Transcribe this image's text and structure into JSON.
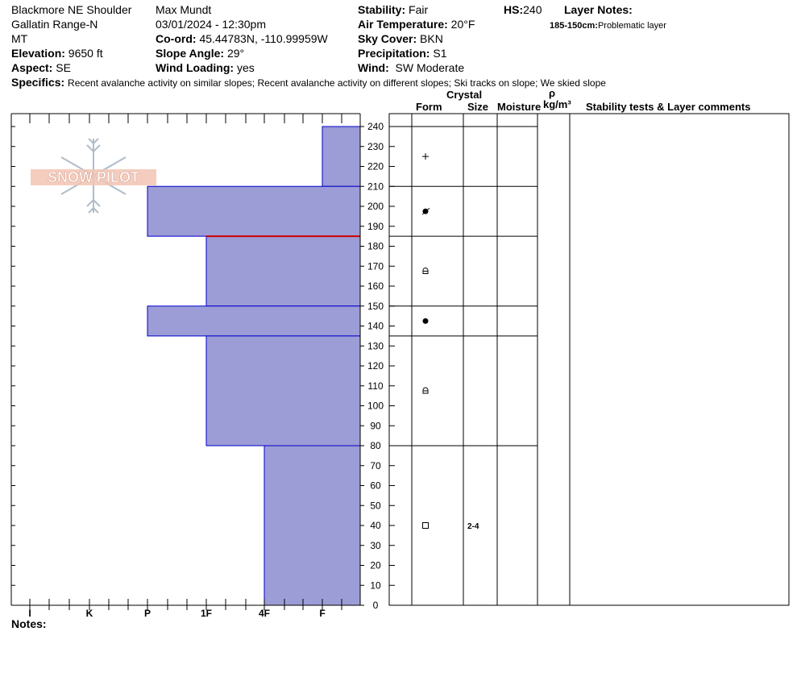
{
  "header": {
    "location": "Blackmore NE Shoulder",
    "range": "Gallatin Range-N",
    "state": "MT",
    "elevation_label": "Elevation:",
    "elevation_value": "9650 ft",
    "aspect_label": "Aspect:",
    "aspect_value": "SE",
    "observer": "Max Mundt",
    "datetime": "03/01/2024 - 12:30pm",
    "coord_label": "Co-ord:",
    "coord_value": "45.44783N, -110.99959W",
    "slope_label": "Slope Angle:",
    "slope_value": "29°",
    "wind_loading_label": "Wind Loading:",
    "wind_loading_value": "yes",
    "stability_label": "Stability:",
    "stability_value": "Fair",
    "air_temp_label": "Air Temperature:",
    "air_temp_value": "20°F",
    "sky_label": "Sky Cover:",
    "sky_value": "BKN",
    "precip_label": "Precipitation:",
    "precip_value": "S1",
    "wind_label": "Wind:",
    "wind_value": "SW Moderate",
    "hs_label": "HS:",
    "hs_value": "240",
    "layer_notes_label": "Layer Notes:",
    "layer_note_range": "185-150cm:",
    "layer_note_text": "Problematic layer",
    "specifics_label": "Specifics:",
    "specifics_value": "Recent avalanche activity on similar slopes; Recent avalanche activity on different slopes; Ski tracks on slope; We skied slope"
  },
  "columns": {
    "crystal": "Crystal",
    "form": "Form",
    "size": "Size",
    "moisture": "Moisture",
    "rho": "ρ",
    "density_unit": "kg/m³",
    "stability_tests": "Stability tests & Layer comments"
  },
  "notes_label": "Notes:",
  "logo_text": "SNOW PILOT",
  "colors": {
    "layer_fill": "#9c9cd6",
    "layer_border": "#0000cc",
    "problem_line": "#cc0000"
  },
  "chart_data": {
    "type": "bar",
    "orientation": "horizontal",
    "hardness_categories": [
      "I",
      "K",
      "P",
      "1F",
      "4F",
      "F"
    ],
    "x_axis_note": "hand hardness decreases to the right (F at right, I at left)",
    "depth_axis": {
      "min": 0,
      "max": 240,
      "ticks": [
        0,
        10,
        20,
        30,
        40,
        50,
        60,
        70,
        80,
        90,
        100,
        110,
        120,
        130,
        140,
        150,
        160,
        170,
        180,
        190,
        200,
        210,
        220,
        230,
        240
      ],
      "unit": "cm"
    },
    "layers": [
      {
        "bottom": 210,
        "top": 240,
        "hardness": "F",
        "form": "+",
        "size": ""
      },
      {
        "bottom": 185,
        "top": 210,
        "hardness": "P",
        "form": "graupel",
        "size": ""
      },
      {
        "bottom": 150,
        "top": 185,
        "hardness": "1F",
        "form": "rounded-facet",
        "size": ""
      },
      {
        "bottom": 135,
        "top": 150,
        "hardness": "P",
        "form": "round",
        "size": ""
      },
      {
        "bottom": 80,
        "top": 135,
        "hardness": "1F",
        "form": "rounded-facet",
        "size": ""
      },
      {
        "bottom": 0,
        "top": 80,
        "hardness": "4F",
        "form": "facet",
        "size": "2-4"
      }
    ],
    "problem_interface": 185
  }
}
